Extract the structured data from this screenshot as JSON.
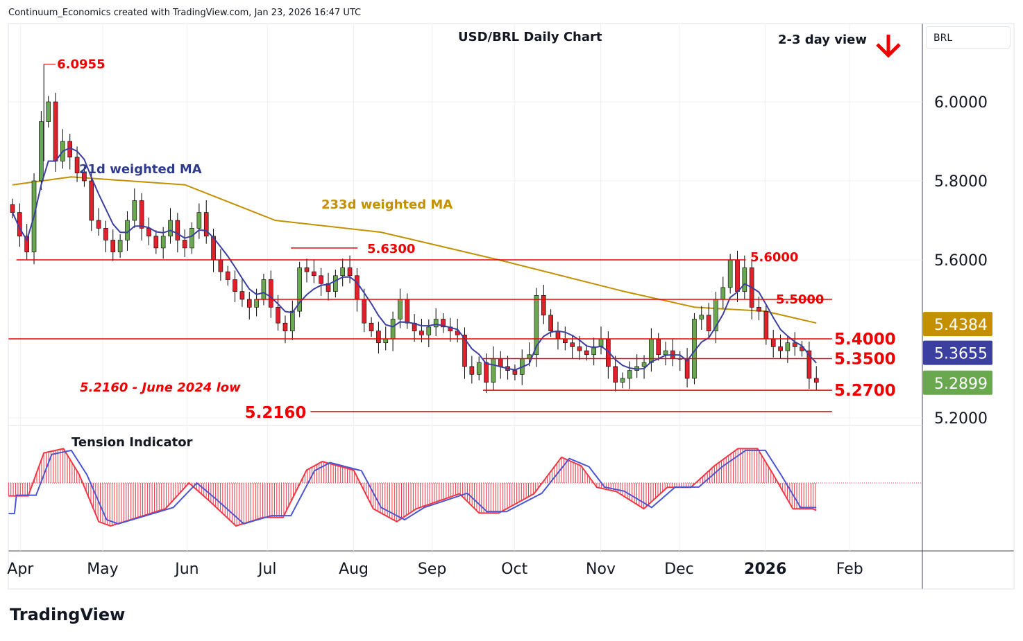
{
  "header": {
    "attribution": "Continuum_Economics created with TradingView.com, Jan 23, 2026 16:47 UTC",
    "symbol_box": "BRL",
    "logo": "TradingView"
  },
  "chart_data": {
    "type": "candlestick",
    "title": "USD/BRL Daily Chart",
    "outlook": "2-3 day view",
    "outlook_direction": "down",
    "ylim": [
      5.16,
      6.13
    ],
    "y_ticks": [
      "6.0000",
      "5.8000",
      "5.6000",
      "5.2000"
    ],
    "y_tick_values": [
      6.0,
      5.8,
      5.6,
      5.2
    ],
    "x_ticks": [
      {
        "label": "Apr",
        "day": 2
      },
      {
        "label": "May",
        "day": 23
      },
      {
        "label": "Jun",
        "day": 44.5
      },
      {
        "label": "Jul",
        "day": 65
      },
      {
        "label": "Aug",
        "day": 87
      },
      {
        "label": "Sep",
        "day": 107
      },
      {
        "label": "Oct",
        "day": 128
      },
      {
        "label": "Nov",
        "day": 150
      },
      {
        "label": "Dec",
        "day": 170
      },
      {
        "label": "2026",
        "day": 192
      },
      {
        "label": "Feb",
        "day": 213.5
      }
    ],
    "last_day": 205,
    "closes": [
      5.72,
      5.66,
      5.62,
      5.8,
      5.95,
      6.0,
      5.85,
      5.9,
      5.86,
      5.82,
      5.8,
      5.7,
      5.68,
      5.65,
      5.62,
      5.65,
      5.7,
      5.75,
      5.68,
      5.66,
      5.63,
      5.66,
      5.7,
      5.65,
      5.63,
      5.68,
      5.72,
      5.66,
      5.6,
      5.57,
      5.55,
      5.52,
      5.5,
      5.48,
      5.5,
      5.55,
      5.48,
      5.44,
      5.42,
      5.47,
      5.58,
      5.57,
      5.56,
      5.54,
      5.52,
      5.56,
      5.58,
      5.56,
      5.5,
      5.44,
      5.42,
      5.39,
      5.4,
      5.45,
      5.5,
      5.44,
      5.42,
      5.41,
      5.43,
      5.45,
      5.43,
      5.42,
      5.41,
      5.33,
      5.31,
      5.34,
      5.29,
      5.35,
      5.33,
      5.32,
      5.31,
      5.35,
      5.36,
      5.51,
      5.46,
      5.42,
      5.4,
      5.39,
      5.38,
      5.37,
      5.36,
      5.38,
      5.4,
      5.33,
      5.29,
      5.3,
      5.32,
      5.33,
      5.34,
      5.4,
      5.36,
      5.37,
      5.35,
      5.35,
      5.3,
      5.45,
      5.46,
      5.42,
      5.5,
      5.53,
      5.6,
      5.52,
      5.58,
      5.48,
      5.47,
      5.4,
      5.38,
      5.37,
      5.39,
      5.38,
      5.37,
      5.3,
      5.2899
    ],
    "ma233": [
      [
        0,
        5.79
      ],
      [
        15,
        5.81
      ],
      [
        44,
        5.79
      ],
      [
        67,
        5.7
      ],
      [
        94,
        5.67
      ],
      [
        124,
        5.6
      ],
      [
        156,
        5.52
      ],
      [
        174,
        5.48
      ],
      [
        192,
        5.47
      ],
      [
        205,
        5.44
      ]
    ],
    "series_labels": {
      "ma21": "21d weighted MA",
      "ma233": "233d weighted MA"
    },
    "price_tags": [
      {
        "value": "5.4384",
        "price": 5.4384,
        "color": "#c49000"
      },
      {
        "value": "5.3655",
        "price": 5.3655,
        "color": "#3a3fa0"
      },
      {
        "value": "5.2899",
        "price": 5.2899,
        "color": "#6aa84f"
      }
    ],
    "levels": [
      {
        "label": "6.0955",
        "price": 6.0955,
        "from": 8,
        "to": 11
      },
      {
        "label": "5.6300",
        "price": 5.63,
        "from": 71,
        "to": 88
      },
      {
        "label": "5.6000",
        "price": 5.6,
        "from": 1,
        "to": 187
      },
      {
        "label": "5.5000",
        "price": 5.5,
        "from": 62,
        "to": 209
      },
      {
        "label": "5.4000",
        "price": 5.4,
        "from": -1,
        "to": 209
      },
      {
        "label": "5.3500",
        "price": 5.35,
        "from": 120,
        "to": 209
      },
      {
        "label": "5.2700",
        "price": 5.27,
        "from": 120,
        "to": 209
      },
      {
        "label": "5.2160",
        "price": 5.216,
        "from": 76,
        "to": 209
      }
    ],
    "annotation": "5.2160 - June 2024 low",
    "indicator": {
      "name": "Tension Indicator",
      "points": [
        [
          -1,
          -0.3
        ],
        [
          4,
          -0.3
        ],
        [
          8,
          0.7
        ],
        [
          13,
          0.8
        ],
        [
          17,
          0.2
        ],
        [
          22,
          -0.9
        ],
        [
          25,
          -1.0
        ],
        [
          32,
          -0.8
        ],
        [
          39,
          -0.6
        ],
        [
          45,
          0.0
        ],
        [
          50,
          -0.4
        ],
        [
          57,
          -1.0
        ],
        [
          64,
          -0.8
        ],
        [
          69,
          -0.8
        ],
        [
          75,
          0.3
        ],
        [
          79,
          0.5
        ],
        [
          87,
          0.3
        ],
        [
          92,
          -0.6
        ],
        [
          98,
          -0.9
        ],
        [
          103,
          -0.6
        ],
        [
          114,
          -0.25
        ],
        [
          119,
          -0.7
        ],
        [
          124,
          -0.7
        ],
        [
          133,
          -0.25
        ],
        [
          140,
          0.6
        ],
        [
          145,
          0.4
        ],
        [
          149,
          -0.1
        ],
        [
          154,
          -0.2
        ],
        [
          161,
          -0.6
        ],
        [
          167,
          -0.1
        ],
        [
          173,
          -0.1
        ],
        [
          179,
          0.4
        ],
        [
          185,
          0.8
        ],
        [
          190,
          0.8
        ],
        [
          194,
          0.2
        ],
        [
          199,
          -0.6
        ],
        [
          204,
          -0.6
        ],
        [
          208,
          -0.75
        ]
      ]
    }
  }
}
